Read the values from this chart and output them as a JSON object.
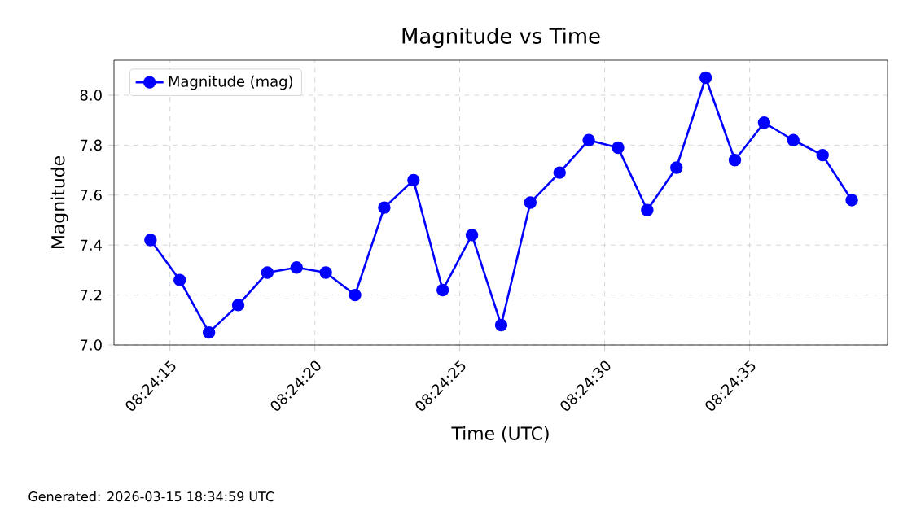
{
  "chart_data": {
    "type": "line",
    "title": "Magnitude vs Time",
    "xlabel": "Time (UTC)",
    "ylabel": "Magnitude",
    "annotations": [
      "Generated: 2026-03-15 18:34:59 UTC"
    ],
    "x": [
      8.403981,
      8.404261,
      8.404541,
      8.404821,
      8.405101,
      8.405381,
      8.405661,
      8.405941,
      8.406221,
      8.406501,
      8.406781,
      8.407061,
      8.407341,
      8.407621,
      8.407901,
      8.408181,
      8.408461,
      8.408741,
      8.409021,
      8.409301,
      8.409581,
      8.409861,
      8.410141,
      8.410421,
      8.410701
    ],
    "series": [
      {
        "name": "Magnitude (mag)",
        "color": "#0000ff",
        "values": [
          7.42,
          7.26,
          7.05,
          7.16,
          7.29,
          7.31,
          7.29,
          7.2,
          7.55,
          7.66,
          7.22,
          7.44,
          7.08,
          7.57,
          7.69,
          7.82,
          7.79,
          7.54,
          7.71,
          8.07,
          7.74,
          7.89,
          7.82,
          7.76,
          7.58
        ]
      }
    ],
    "xlim": [
      8.403631,
      8.411044
    ],
    "xticks": [
      {
        "value": 8.404167,
        "label": "08:24:15"
      },
      {
        "value": 8.405556,
        "label": "08:24:20"
      },
      {
        "value": 8.406944,
        "label": "08:24:25"
      },
      {
        "value": 8.408333,
        "label": "08:24:30"
      },
      {
        "value": 8.409722,
        "label": "08:24:35"
      }
    ],
    "ylim": [
      7.0,
      8.14
    ],
    "yticks": [
      {
        "value": 7.0,
        "label": "7.0"
      },
      {
        "value": 7.2,
        "label": "7.2"
      },
      {
        "value": 7.4,
        "label": "7.4"
      },
      {
        "value": 7.6,
        "label": "7.6"
      },
      {
        "value": 7.8,
        "label": "7.8"
      },
      {
        "value": 8.0,
        "label": "8.0"
      }
    ],
    "grid": true,
    "legend": "top left",
    "marker": "circle",
    "line_style": "solid"
  }
}
